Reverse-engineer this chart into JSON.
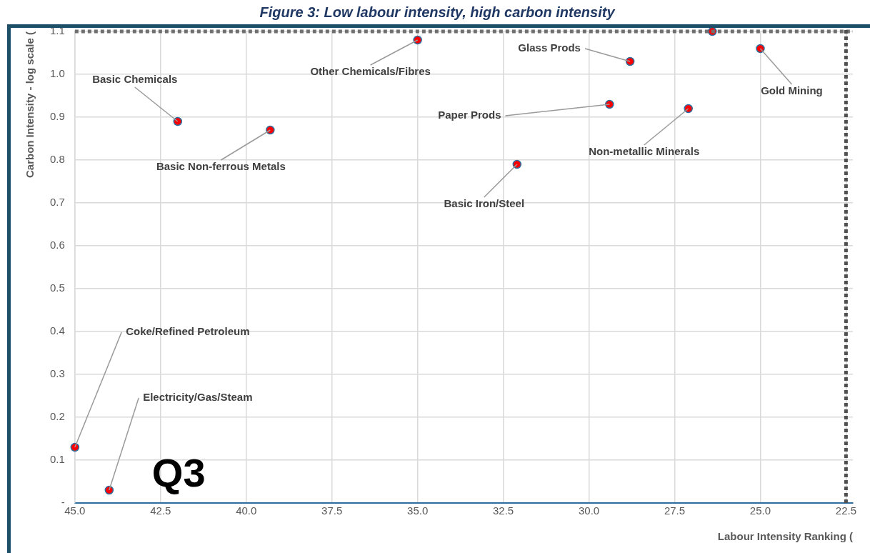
{
  "chart_data": {
    "type": "scatter",
    "title": "Figure 3: Low labour intensity, high carbon intensity",
    "xlabel": "Labour Intensity Ranking (",
    "ylabel": "Carbon Intensity - log scale (",
    "x": [
      42.0,
      39.3,
      35.0,
      28.8,
      26.4,
      25.0,
      29.4,
      27.1,
      32.1,
      45.0,
      44.0
    ],
    "series": [
      {
        "color": "#ff0000",
        "values": [
          0.89,
          0.87,
          1.08,
          1.03,
          1.1,
          1.06,
          0.93,
          0.92,
          0.79,
          0.13,
          0.03
        ]
      }
    ],
    "xlim": [
      45,
      22.3
    ],
    "xticks": [
      {
        "value": 45,
        "label": "45.0"
      },
      {
        "value": 42.5,
        "label": "42.5"
      },
      {
        "value": 40,
        "label": "40.0"
      },
      {
        "value": 37.5,
        "label": "37.5"
      },
      {
        "value": 35,
        "label": "35.0"
      },
      {
        "value": 32.5,
        "label": "32.5"
      },
      {
        "value": 30,
        "label": "30.0"
      },
      {
        "value": 27.5,
        "label": "27.5"
      },
      {
        "value": 25,
        "label": "25.0"
      },
      {
        "value": 22.5,
        "label": "22.5"
      }
    ],
    "ylim": [
      0,
      1.1
    ],
    "yticks": [
      {
        "value": 0,
        "label": "-"
      },
      0.1,
      0.2,
      0.3,
      0.4,
      0.5,
      0.6,
      0.7,
      0.8,
      0.9,
      {
        "value": 1,
        "label": "1.0"
      },
      1.1
    ],
    "grid": true,
    "marker": "circle",
    "legend": false,
    "ref_lines": [
      {
        "axis": "y",
        "value": 1.1,
        "color": "#707070",
        "line_style": "dotted"
      },
      {
        "axis": "x",
        "value": 22.5,
        "color": "#505050",
        "line_style": "dotted"
      }
    ],
    "annotations": [
      {
        "text": "Basic Chemicals",
        "x": 42.0,
        "y": 0.89
      },
      {
        "text": "Basic Non-ferrous Metals",
        "x": 39.3,
        "y": 0.87
      },
      {
        "text": "Other Chemicals/Fibres",
        "x": 35.0,
        "y": 1.08
      },
      {
        "text": "Glass Prods",
        "x": 28.8,
        "y": 1.03
      },
      {
        "text": "Gold Mining",
        "x": 25.0,
        "y": 1.06
      },
      {
        "text": "Paper Prods",
        "x": 29.4,
        "y": 0.93
      },
      {
        "text": "Non-metallic Minerals",
        "x": 27.1,
        "y": 0.92
      },
      {
        "text": "Basic Iron/Steel",
        "x": 32.1,
        "y": 0.79
      },
      {
        "text": "Coke/Refined Petroleum",
        "x": 45.0,
        "y": 0.13
      },
      {
        "text": "Electricity/Gas/Steam",
        "x": 44.0,
        "y": 0.03
      },
      "Q3"
    ]
  }
}
